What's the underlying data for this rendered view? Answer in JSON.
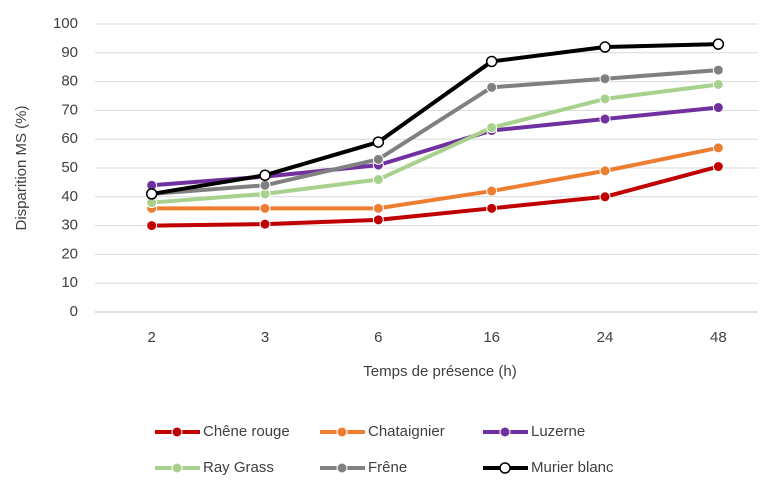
{
  "chart_data": {
    "type": "line",
    "y_label": "Disparition MS (%)",
    "x_label": "Temps de présence (h)",
    "categories": [
      "2",
      "3",
      "6",
      "16",
      "24",
      "48"
    ],
    "series": [
      {
        "name": "Chêne rouge",
        "color": "#c00000",
        "values": [
          30,
          30.5,
          32,
          36,
          40,
          50.5
        ]
      },
      {
        "name": "Chataignier",
        "color": "#ed7d31",
        "values": [
          36,
          36,
          36,
          42,
          49,
          57
        ]
      },
      {
        "name": "Luzerne",
        "color": "#7030a0",
        "values": [
          44,
          47,
          51,
          63,
          67,
          71
        ]
      },
      {
        "name": "Ray Grass",
        "color": "#a9d18e",
        "values": [
          38,
          41,
          46,
          64,
          74,
          79
        ]
      },
      {
        "name": "Frêne",
        "color": "#808080",
        "values": [
          41,
          44,
          53,
          78,
          81,
          84
        ]
      },
      {
        "name": "Murier blanc",
        "color": "#000000",
        "marker_fill": "#ffffff",
        "values": [
          41,
          47.5,
          59,
          87,
          92,
          93
        ]
      }
    ],
    "ylim": [
      0,
      100
    ],
    "yticks": [
      0,
      10,
      20,
      30,
      40,
      50,
      60,
      70,
      80,
      90,
      100
    ],
    "grid": true,
    "legend": "bottom"
  }
}
